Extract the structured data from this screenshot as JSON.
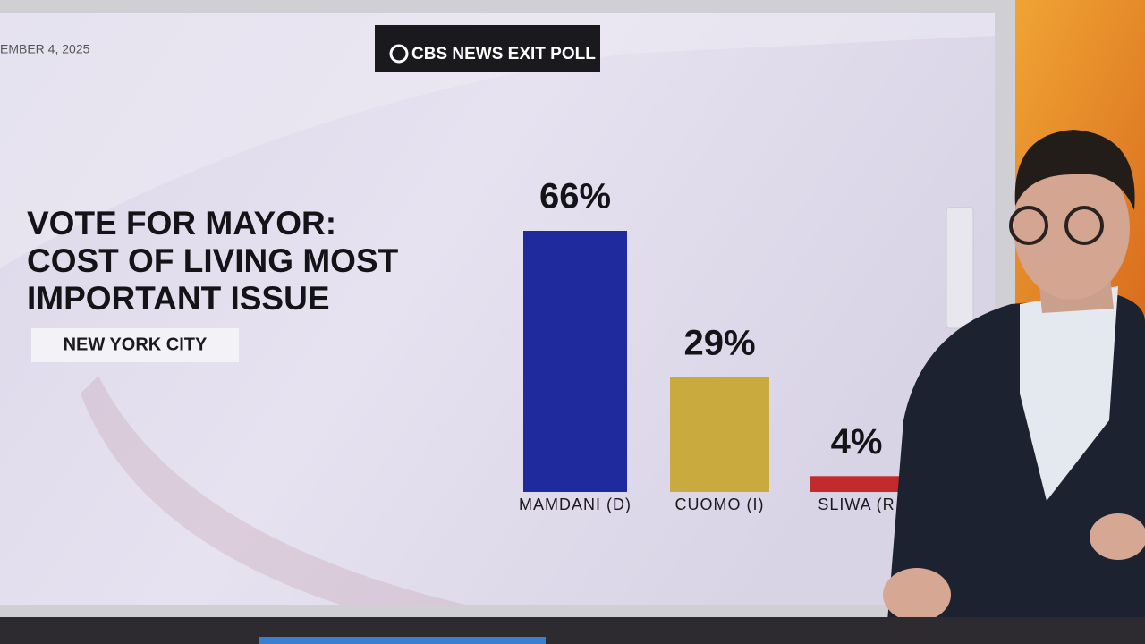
{
  "chart_data": {
    "type": "bar",
    "date": "EMBER 4, 2025",
    "brand": "CBS NEWS EXIT POLL",
    "title": [
      "VOTE FOR MAYOR:",
      "COST OF LIVING MOST",
      "IMPORTANT ISSUE"
    ],
    "subtitle": "NEW YORK CITY",
    "categories": [
      "MAMDANI (D)",
      "CUOMO (I)",
      "SLIWA (R"
    ],
    "values": [
      66,
      29,
      4
    ],
    "value_labels": [
      "66%",
      "29%",
      "4%"
    ],
    "colors": [
      "#1f2a9c",
      "#c9aa3e",
      "#c22a2c"
    ]
  }
}
